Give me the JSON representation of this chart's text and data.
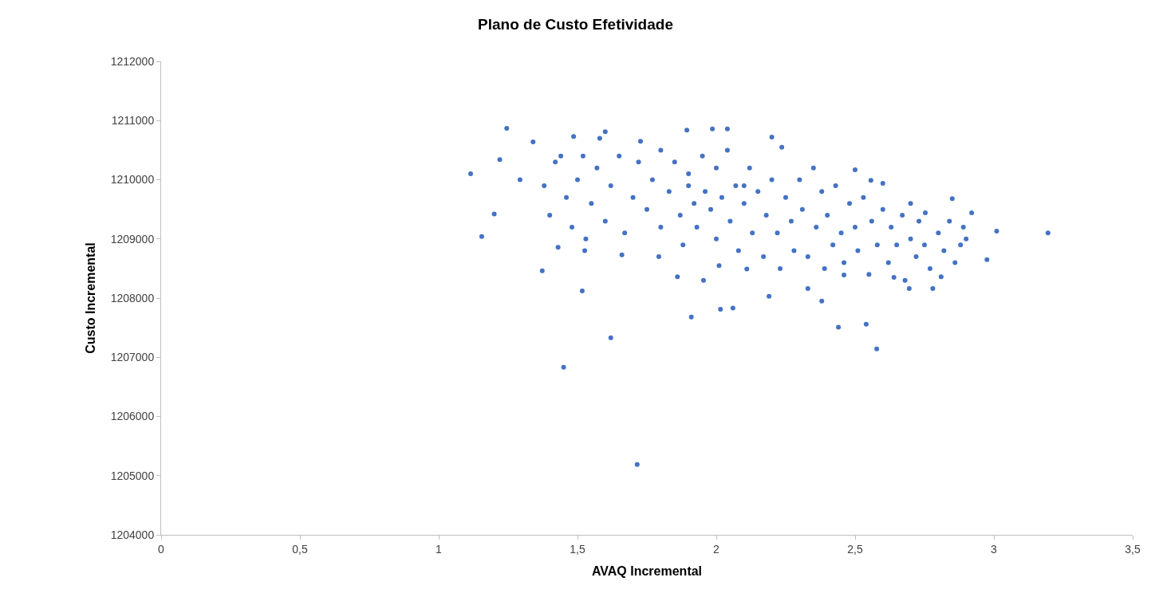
{
  "chart_data": {
    "type": "scatter",
    "title": "Plano de Custo Efetividade",
    "xlabel": "AVAQ Incremental",
    "ylabel": "Custo Incremental",
    "x": [
      1.115,
      1.155,
      1.2,
      1.22,
      1.245,
      1.293,
      1.34,
      1.373,
      1.45,
      1.517,
      1.62,
      1.715,
      3.195,
      3.01,
      2.975,
      2.9,
      1.91,
      2.015,
      2.06,
      2.54,
      2.578,
      2.44,
      2.38,
      2.92,
      2.85,
      1.486,
      1.6,
      1.727,
      1.894,
      1.986,
      2.04,
      2.2,
      2.236,
      2.5,
      2.557,
      2.6,
      2.7,
      2.753,
      1.793,
      1.86,
      1.954,
      2.01,
      2.11,
      2.19,
      2.33,
      2.46,
      2.64,
      2.695,
      2.81,
      2.78,
      1.66,
      1.526,
      1.43,
      1.38,
      1.42,
      1.4,
      1.46,
      1.5,
      1.48,
      1.52,
      1.55,
      1.57,
      1.6,
      1.62,
      1.65,
      1.67,
      1.7,
      1.72,
      1.75,
      1.77,
      1.8,
      1.8,
      1.83,
      1.85,
      1.87,
      1.88,
      1.9,
      1.92,
      1.93,
      1.95,
      1.96,
      1.98,
      2.0,
      2.0,
      2.02,
      2.04,
      2.05,
      2.07,
      2.08,
      2.1,
      2.12,
      2.13,
      2.15,
      2.17,
      2.18,
      2.2,
      2.22,
      2.23,
      2.25,
      2.27,
      2.28,
      2.3,
      2.31,
      2.33,
      2.35,
      2.36,
      2.38,
      2.39,
      2.4,
      2.42,
      2.43,
      2.45,
      2.46,
      2.48,
      2.5,
      2.51,
      2.53,
      2.55,
      2.56,
      2.58,
      2.6,
      2.62,
      2.63,
      2.65,
      2.67,
      2.68,
      2.7,
      2.72,
      2.73,
      2.75,
      2.77,
      2.8,
      2.82,
      2.84,
      2.86,
      2.88,
      2.89,
      1.58,
      1.44,
      1.53,
      1.9,
      2.1
    ],
    "values": [
      1210100,
      1209040,
      1209420,
      1210340,
      1210870,
      1210000,
      1210640,
      1208460,
      1206830,
      1208120,
      1207330,
      1205190,
      1209100,
      1209130,
      1208650,
      1209000,
      1207680,
      1207810,
      1207830,
      1207560,
      1207140,
      1207510,
      1207950,
      1209440,
      1209680,
      1210730,
      1210810,
      1210650,
      1210840,
      1210860,
      1210860,
      1210720,
      1210550,
      1210170,
      1209990,
      1209940,
      1209600,
      1209440,
      1208700,
      1208360,
      1208300,
      1208550,
      1208490,
      1208030,
      1208160,
      1208390,
      1208350,
      1208160,
      1208360,
      1208160,
      1208730,
      1208800,
      1208860,
      1209900,
      1210300,
      1209400,
      1209700,
      1210000,
      1209200,
      1210400,
      1209600,
      1210200,
      1209300,
      1209900,
      1210400,
      1209100,
      1209700,
      1210300,
      1209500,
      1210000,
      1210500,
      1209200,
      1209800,
      1210300,
      1209400,
      1208900,
      1210100,
      1209600,
      1209200,
      1210400,
      1209800,
      1209500,
      1210200,
      1209000,
      1209700,
      1210500,
      1209300,
      1209900,
      1208800,
      1209600,
      1210200,
      1209100,
      1209800,
      1208700,
      1209400,
      1210000,
      1209100,
      1208500,
      1209700,
      1209300,
      1208800,
      1210000,
      1209500,
      1208700,
      1210200,
      1209200,
      1209800,
      1208500,
      1209400,
      1208900,
      1209900,
      1209100,
      1208600,
      1209600,
      1209200,
      1208800,
      1209700,
      1208400,
      1209300,
      1208900,
      1209500,
      1208600,
      1209200,
      1208900,
      1209400,
      1208300,
      1209000,
      1208700,
      1209300,
      1208900,
      1208500,
      1209100,
      1208800,
      1209300,
      1208600,
      1208900,
      1209200,
      1210700,
      1210400,
      1209000,
      1209900,
      1209900
    ],
    "color": "#4472c4",
    "marker": "circle",
    "xlim": [
      0,
      3.5
    ],
    "xticks": [
      0,
      {
        "value": 0.5,
        "label": "0,5"
      },
      1,
      {
        "value": 1.5,
        "label": "1,5"
      },
      2,
      {
        "value": 2.5,
        "label": "2,5"
      },
      3,
      {
        "value": 3.5,
        "label": "3,5"
      }
    ],
    "ylim": [
      1204000,
      1212000
    ],
    "yticks": [
      1204000,
      1205000,
      1206000,
      1207000,
      1208000,
      1209000,
      1210000,
      1211000,
      1212000
    ]
  }
}
